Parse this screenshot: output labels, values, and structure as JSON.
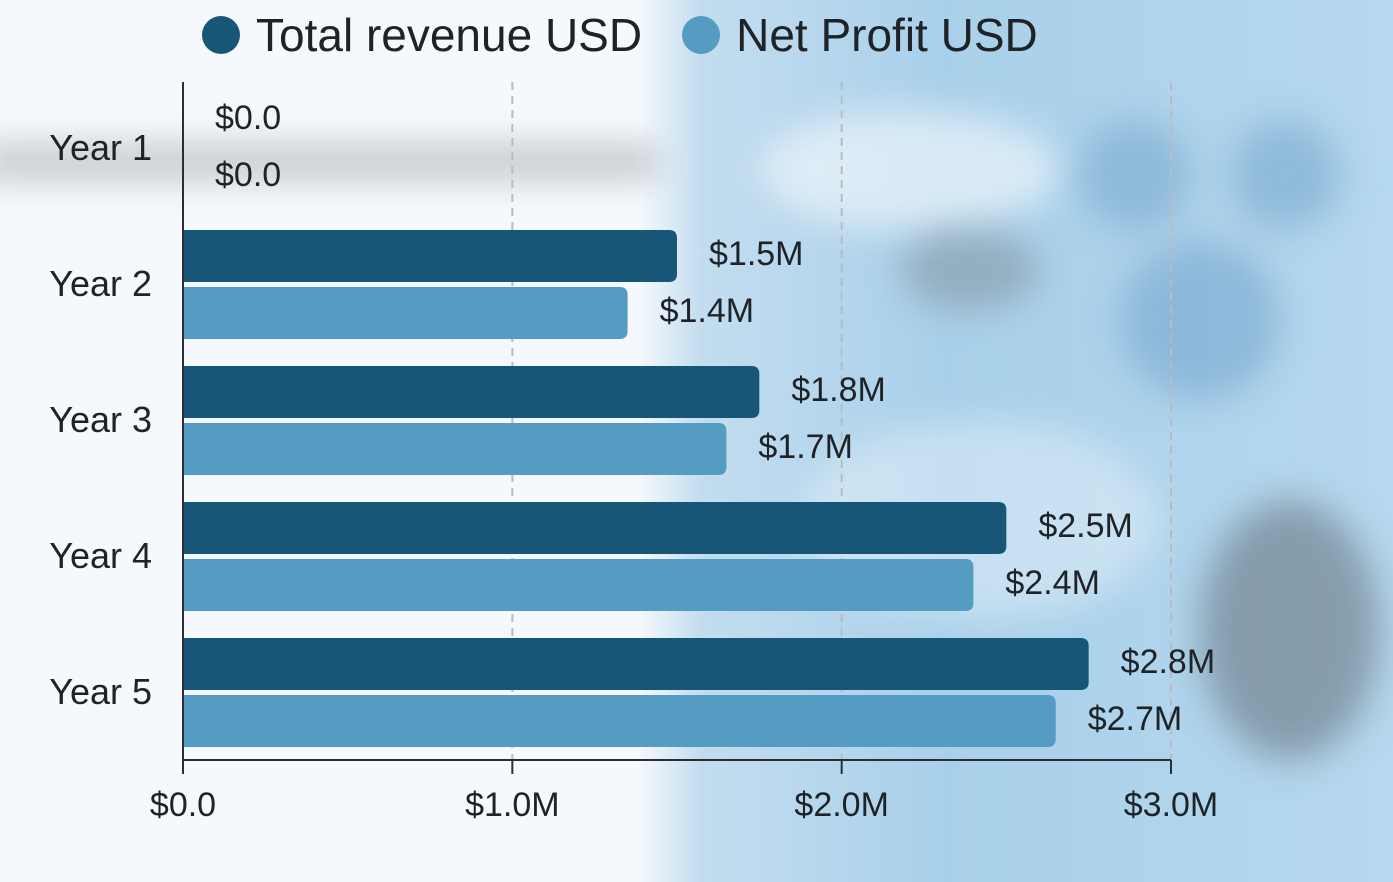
{
  "chart_data": {
    "type": "bar",
    "orientation": "horizontal",
    "categories": [
      "Year 1",
      "Year 2",
      "Year 3",
      "Year 4",
      "Year 5"
    ],
    "series": [
      {
        "name": "Total revenue USD",
        "color": "#175676",
        "values": [
          0,
          1500000,
          1750000,
          2500000,
          2750000
        ],
        "labels": [
          "$0.0",
          "$1.5M",
          "$1.8M",
          "$2.5M",
          "$2.8M"
        ]
      },
      {
        "name": "Net Profit USD",
        "color": "#549cc2",
        "values": [
          0,
          1350000,
          1650000,
          2400000,
          2650000
        ],
        "labels": [
          "$0.0",
          "$1.4M",
          "$1.7M",
          "$2.4M",
          "$2.7M"
        ]
      }
    ],
    "xlim": [
      0,
      3000000
    ],
    "xticks": [
      0,
      1000000,
      2000000,
      3000000
    ],
    "xtick_labels": [
      "$0.0",
      "$1.0M",
      "$2.0M",
      "$3.0M"
    ],
    "grid": "vertical dashed",
    "legend_position": "top",
    "title": "",
    "xlabel": "",
    "ylabel": ""
  }
}
